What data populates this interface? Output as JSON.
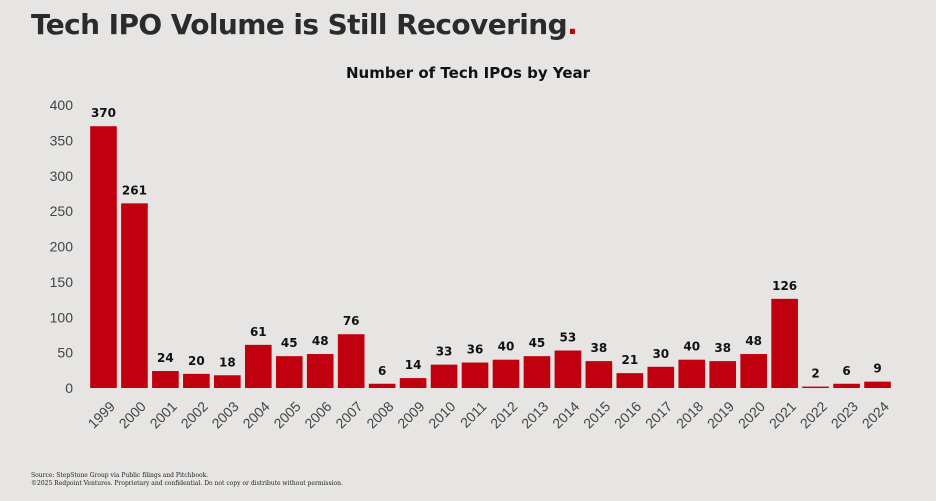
{
  "page": {
    "headline": "Tech IPO Volume is Still Recovering",
    "headline_dot": ".",
    "footer_source": "Source: StepStone Group via Public filings and Pitchbook.",
    "footer_copyright": "©2025 Redpoint Ventures. Proprietary and confidential. Do not copy or distribute without permission."
  },
  "colors": {
    "bar": "#c0000e",
    "background": "#e6e5e3",
    "text": "#111111",
    "axis_label": "#444444",
    "accent": "#c0000e"
  },
  "chart_data": {
    "type": "bar",
    "title": "Number of Tech IPOs by Year",
    "xlabel": "",
    "ylabel": "",
    "ylim": [
      0,
      400
    ],
    "yticks": [
      0,
      50,
      100,
      150,
      200,
      250,
      300,
      350,
      400
    ],
    "grid": false,
    "legend": "none",
    "categories": [
      "1999",
      "2000",
      "2001",
      "2002",
      "2003",
      "2004",
      "2005",
      "2006",
      "2007",
      "2008",
      "2009",
      "2010",
      "2011",
      "2012",
      "2013",
      "2014",
      "2015",
      "2016",
      "2017",
      "2018",
      "2019",
      "2020",
      "2021",
      "2022",
      "2023",
      "2024"
    ],
    "values": [
      370,
      261,
      24,
      20,
      18,
      61,
      45,
      48,
      76,
      6,
      14,
      33,
      36,
      40,
      45,
      53,
      38,
      21,
      30,
      40,
      38,
      48,
      126,
      2,
      6,
      9
    ]
  }
}
